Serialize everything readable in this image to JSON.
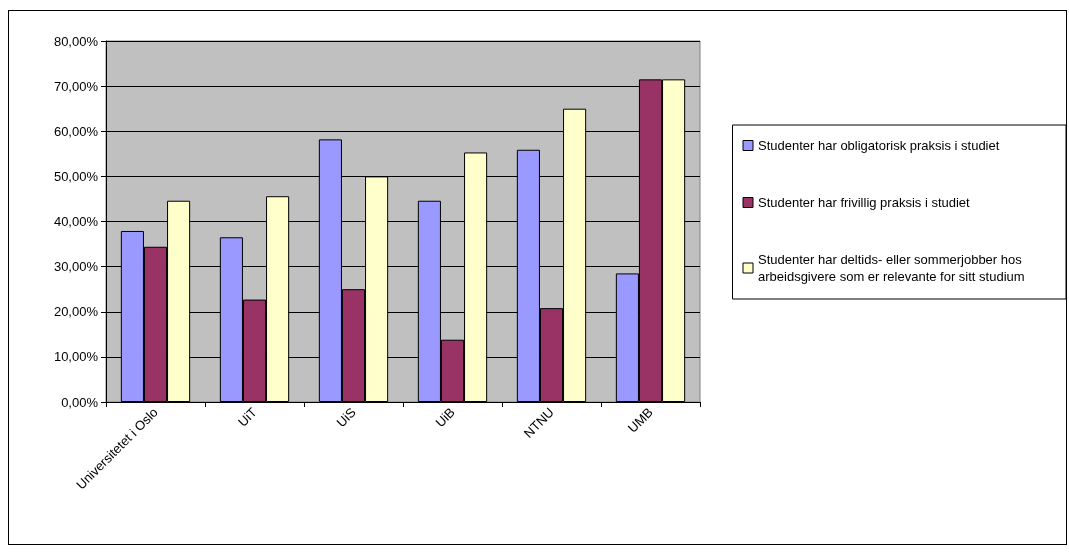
{
  "chart_data": {
    "type": "bar",
    "categories": [
      "Universitetet i Oslo",
      "UiT",
      "UiS",
      "UiB",
      "NTNU",
      "UMB"
    ],
    "series": [
      {
        "name": "Studenter har obligatorisk praksis i studiet",
        "color": "#9999ff",
        "values": [
          37.9,
          36.5,
          58.2,
          44.6,
          55.9,
          28.5
        ]
      },
      {
        "name": "Studenter har frivillig praksis i studiet",
        "color": "#993366",
        "values": [
          34.4,
          22.7,
          25.0,
          13.8,
          20.8,
          71.5
        ]
      },
      {
        "name": "Studenter har deltids- eller sommerjobber hos arbeidsgivere som er relevante for sitt studium",
        "color": "#ffffcc",
        "values": [
          44.6,
          45.6,
          50.0,
          55.3,
          65.0,
          71.5
        ]
      }
    ],
    "ylim": [
      0,
      80
    ],
    "yticks": [
      {
        "value": 0,
        "label": "0,00%"
      },
      {
        "value": 10,
        "label": "10,00%"
      },
      {
        "value": 20,
        "label": "20,00%"
      },
      {
        "value": 30,
        "label": "30,00%"
      },
      {
        "value": 40,
        "label": "40,00%"
      },
      {
        "value": 50,
        "label": "50,00%"
      },
      {
        "value": 60,
        "label": "60,00%"
      },
      {
        "value": 70,
        "label": "70,00%"
      },
      {
        "value": 80,
        "label": "80,00%"
      }
    ],
    "grid": "y",
    "legend": "right"
  }
}
